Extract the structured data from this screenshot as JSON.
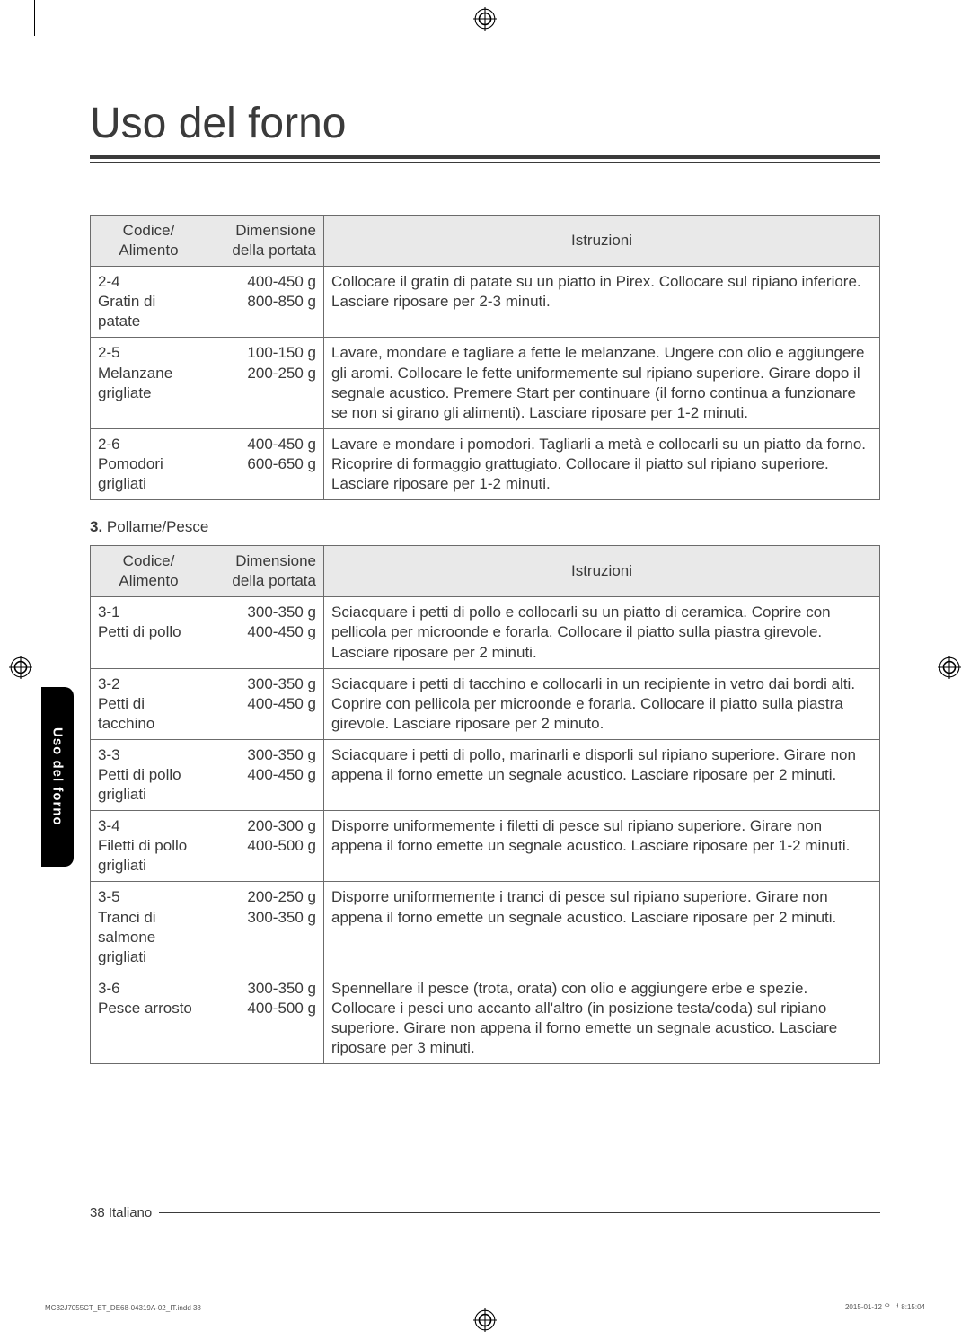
{
  "page": {
    "title": "Uso del forno",
    "side_tab": "Uso del forno",
    "footer": "38 Italiano",
    "print_file": "MC32J7055CT_ET_DE68-04319A-02_IT.indd   38",
    "print_time": "2015-01-12   ᄋ ᅥ 8:15:04"
  },
  "table1": {
    "headers": {
      "code": "Codice/\nAlimento",
      "dim": "Dimensione\ndella portata",
      "instr": "Istruzioni"
    },
    "rows": [
      {
        "code": "2-4\nGratin di patate",
        "dim": "400-450 g\n800-850 g",
        "instr": "Collocare il gratin di patate su un piatto in Pirex. Collocare sul ripiano inferiore. Lasciare riposare per 2-3 minuti."
      },
      {
        "code": "2-5\nMelanzane grigliate",
        "dim": "100-150 g\n200-250 g",
        "instr": "Lavare, mondare e tagliare a fette le melanzane. Ungere con olio e aggiungere gli aromi. Collocare le fette uniformemente sul ripiano superiore. Girare dopo il segnale acustico. Premere Start per continuare (il forno continua a funzionare se non si girano gli alimenti). Lasciare riposare per 1-2 minuti."
      },
      {
        "code": "2-6\nPomodori grigliati",
        "dim": "400-450 g\n600-650 g",
        "instr": "Lavare e mondare i pomodori. Tagliarli a metà e collocarli su un piatto da forno. Ricoprire di formaggio grattugiato. Collocare il piatto sul ripiano superiore. Lasciare riposare per 1-2 minuti."
      }
    ]
  },
  "section3": {
    "num": "3.",
    "label": "Pollame/Pesce"
  },
  "table2": {
    "headers": {
      "code": "Codice/\nAlimento",
      "dim": "Dimensione\ndella portata",
      "instr": "Istruzioni"
    },
    "rows": [
      {
        "code": "3-1\nPetti di pollo",
        "dim": "300-350 g\n400-450 g",
        "instr": "Sciacquare i petti di pollo e collocarli su un piatto di ceramica. Coprire con pellicola per microonde e forarla. Collocare il piatto sulla piastra girevole. Lasciare riposare per 2 minuti."
      },
      {
        "code": "3-2\nPetti di tacchino",
        "dim": "300-350 g\n400-450 g",
        "instr": "Sciacquare i petti di tacchino e collocarli in un recipiente in vetro dai bordi alti. Coprire con pellicola per microonde e forarla. Collocare il piatto sulla piastra girevole. Lasciare riposare per 2 minuto."
      },
      {
        "code": "3-3\nPetti di pollo grigliati",
        "dim": "300-350 g\n400-450 g",
        "instr": "Sciacquare i petti di pollo, marinarli e disporli sul ripiano superiore. Girare non appena il forno emette un segnale acustico. Lasciare riposare per 2 minuti."
      },
      {
        "code": "3-4\nFiletti di pollo grigliati",
        "dim": "200-300 g\n400-500 g",
        "instr": "Disporre uniformemente i filetti di pesce sul ripiano superiore. Girare non appena il forno emette un segnale acustico. Lasciare riposare per 1-2 minuti."
      },
      {
        "code": "3-5\nTranci di salmone grigliati",
        "dim": "200-250 g\n300-350 g",
        "instr": "Disporre uniformemente i tranci di pesce sul ripiano superiore. Girare non appena il forno emette un segnale acustico. Lasciare riposare per 2 minuti."
      },
      {
        "code": "3-6\nPesce arrosto",
        "dim": "300-350 g\n400-500 g",
        "instr": "Spennellare il pesce (trota, orata) con olio e aggiungere erbe e spezie. Collocare i pesci uno accanto all'altro (in posizione testa/coda) sul ripiano superiore. Girare non appena il forno emette un segnale acustico. Lasciare riposare per 3 minuti."
      }
    ]
  },
  "style": {
    "bg": "#ffffff",
    "text": "#3a3a3a",
    "header_bg": "#e9e9e9",
    "border": "#6b6b6b",
    "tab_bg": "#000000",
    "tab_text": "#ffffff",
    "body_fontsize": 17,
    "title_fontsize": 48
  }
}
